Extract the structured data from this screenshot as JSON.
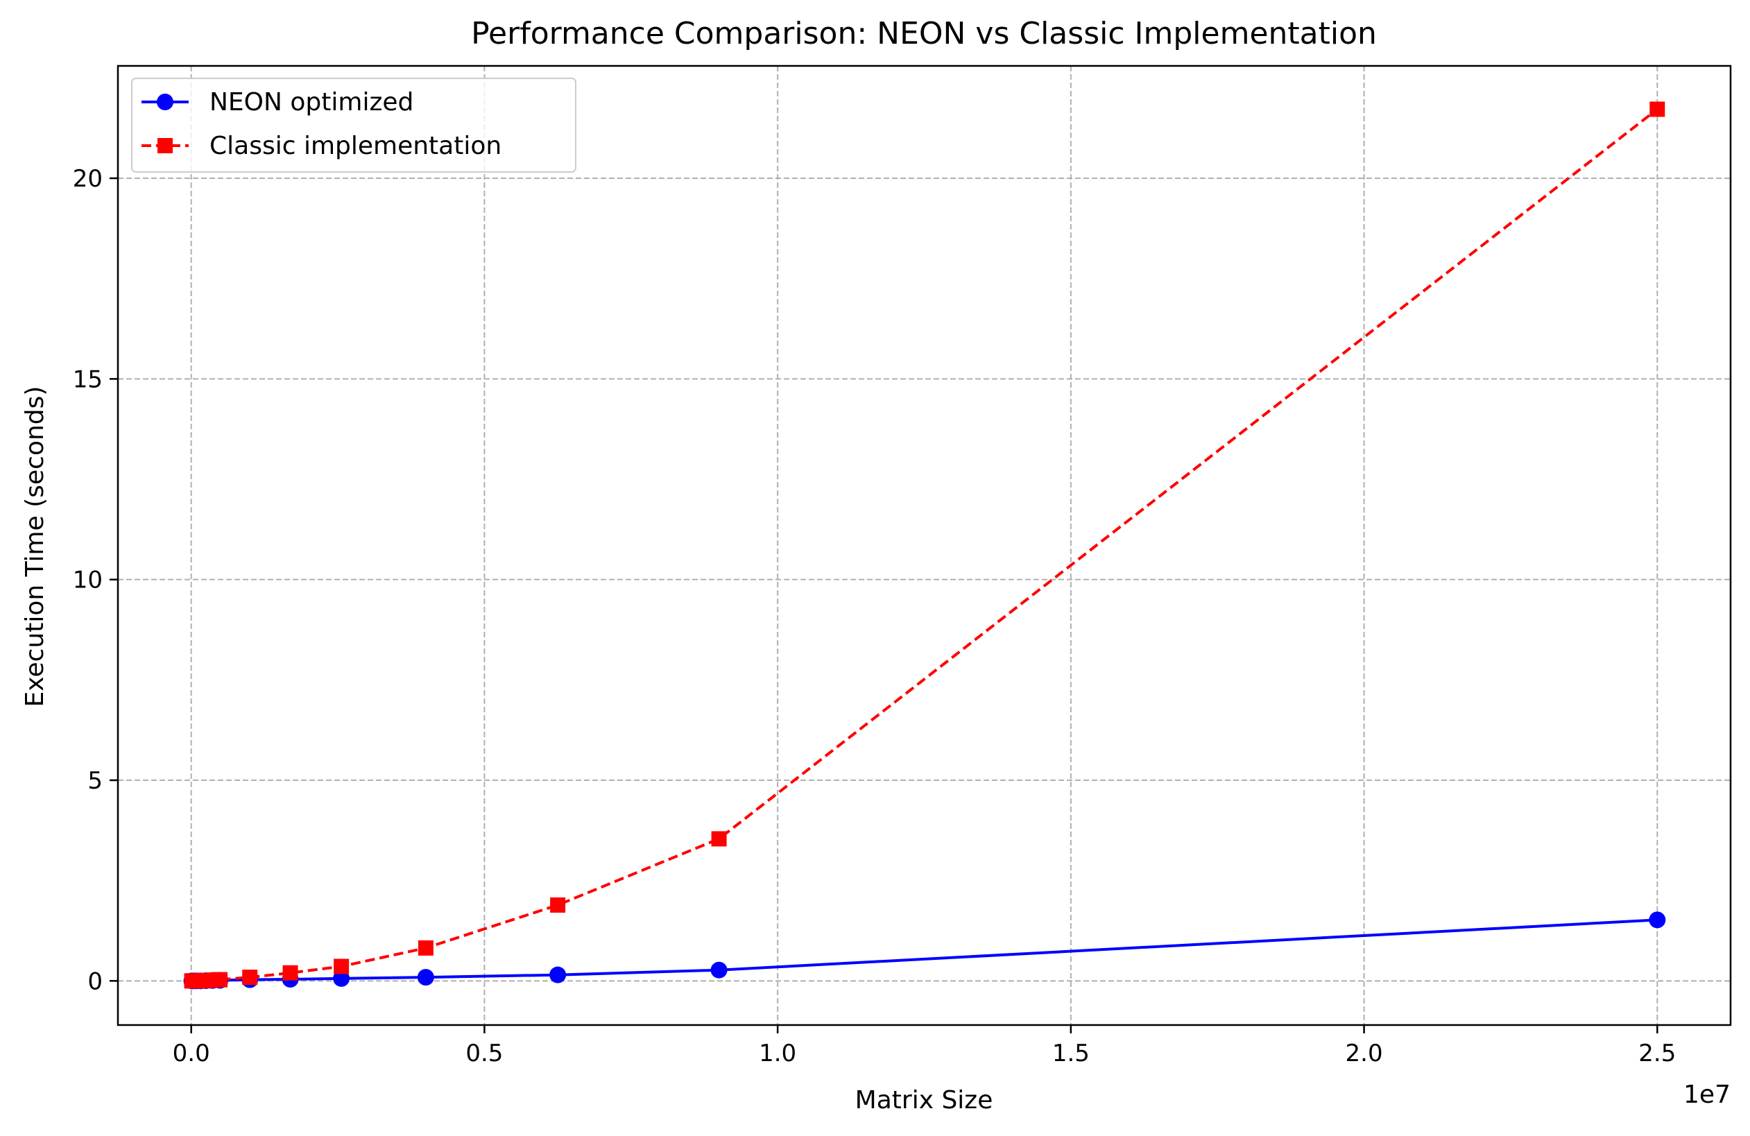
{
  "chart_data": {
    "type": "line",
    "title": "Performance Comparison: NEON vs Classic Implementation",
    "xlabel": "Matrix Size",
    "ylabel": "Execution Time (seconds)",
    "x_offset_label": "1e7",
    "xlim": [
      -1250000,
      26250000
    ],
    "ylim": [
      -1.1,
      22.8
    ],
    "x_scale_factor": 10000000,
    "x_ticks": [
      0,
      5000000,
      10000000,
      15000000,
      20000000,
      25000000
    ],
    "x_tick_labels": [
      "0.0",
      "0.5",
      "1.0",
      "1.5",
      "2.0",
      "2.5"
    ],
    "y_ticks": [
      0,
      5,
      10,
      15,
      20
    ],
    "y_tick_labels": [
      "0",
      "5",
      "10",
      "15",
      "20"
    ],
    "grid": true,
    "legend_position": "top-left",
    "series": [
      {
        "name": "NEON optimized",
        "color": "#0000ff",
        "line_style": "solid",
        "marker": "circle",
        "x": [
          10000,
          40000,
          90000,
          160000,
          250000,
          360000,
          490000,
          1000000,
          1690000,
          2560000,
          4000000,
          6250000,
          9000000,
          25000000
        ],
        "y": [
          0.0,
          0.0,
          0.0,
          0.0,
          0.005,
          0.01,
          0.015,
          0.03,
          0.04,
          0.06,
          0.09,
          0.15,
          0.27,
          1.52
        ]
      },
      {
        "name": "Classic implementation",
        "color": "#ff0000",
        "line_style": "dashed",
        "marker": "square",
        "x": [
          10000,
          40000,
          90000,
          160000,
          250000,
          360000,
          490000,
          1000000,
          1690000,
          2560000,
          4000000,
          6250000,
          9000000,
          25000000
        ],
        "y": [
          0.0,
          0.0,
          0.0,
          0.005,
          0.01,
          0.02,
          0.03,
          0.09,
          0.2,
          0.36,
          0.82,
          1.89,
          3.54,
          21.72
        ]
      }
    ]
  }
}
